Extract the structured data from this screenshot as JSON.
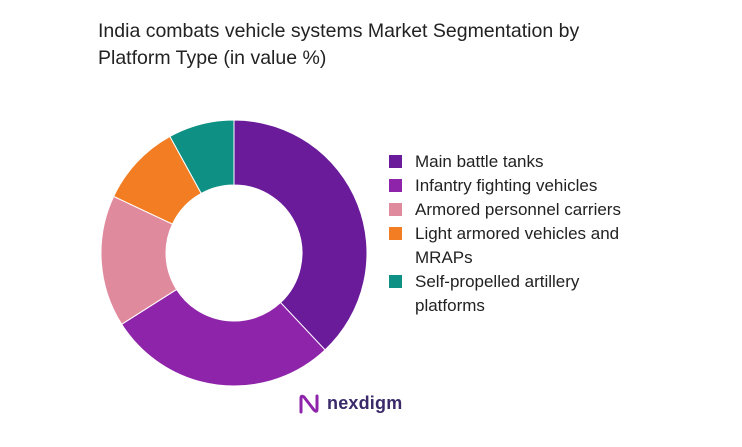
{
  "chart_data": {
    "type": "pie",
    "title_lines": [
      "India combats vehicle systems Market Segmentation by",
      "Platform Type (in value %)"
    ],
    "series": [
      {
        "name": "Main battle tanks",
        "value": 38,
        "color": "#6a1b9a"
      },
      {
        "name": "Infantry fighting vehicles",
        "value": 28,
        "color": "#8e24aa"
      },
      {
        "name": "Armored personnel carriers",
        "value": 16,
        "color": "#e08a9e"
      },
      {
        "name": "Light armored vehicles and MRAPs",
        "value": 10,
        "color": "#f27d23"
      },
      {
        "name": "Self-propelled artillery platforms",
        "value": 8,
        "color": "#0e9184"
      }
    ],
    "donut": true,
    "legend_position": "right"
  },
  "brand": {
    "name": "nexdigm",
    "color": "#3a2a6a",
    "icon": "nexdigm-logo-icon"
  }
}
